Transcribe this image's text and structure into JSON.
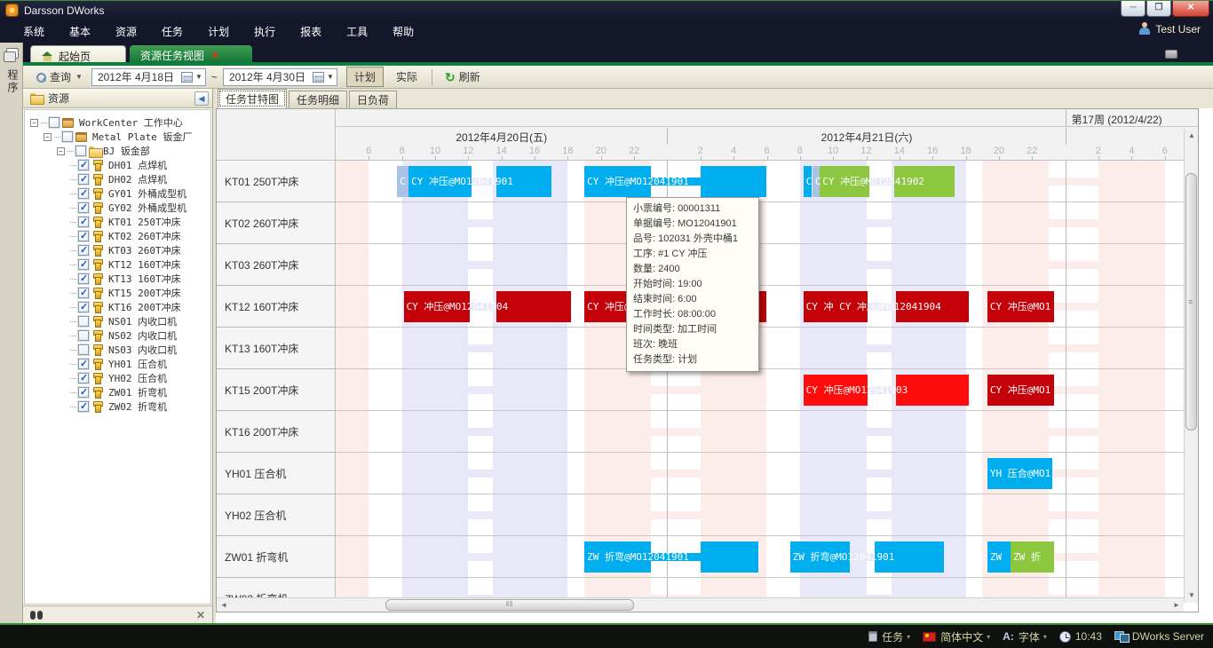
{
  "window": {
    "title": "Darsson DWorks",
    "user": "Test User"
  },
  "menu": {
    "items": [
      "系统",
      "基本",
      "资源",
      "任务",
      "计划",
      "执行",
      "报表",
      "工具",
      "帮助"
    ]
  },
  "side_strip": {
    "label": "程序"
  },
  "doc_tabs": {
    "home": "起始页",
    "active": "资源任务视图",
    "close_glyph": "✕"
  },
  "toolbar": {
    "search_label": "查询",
    "date_from": "2012年  4月18日",
    "range_sep": "~",
    "date_to": "2012年  4月30日",
    "plan_label": "计划",
    "actual_label": "实际",
    "refresh_label": "刷新"
  },
  "resource_panel": {
    "title": "资源",
    "tree": [
      {
        "level": 0,
        "label": "WorkCenter 工作中心",
        "parent": true,
        "checked": false,
        "icon": "workcenter-icon"
      },
      {
        "level": 1,
        "label": "Metal Plate 钣金厂",
        "parent": true,
        "checked": false,
        "icon": "factory-icon"
      },
      {
        "level": 2,
        "label": "BJ 钣金部",
        "parent": true,
        "checked": false,
        "icon": "folder-icon"
      },
      {
        "level": 3,
        "label": "DH01 点焊机",
        "checked": true,
        "icon": "machine-icon"
      },
      {
        "level": 3,
        "label": "DH02 点焊机",
        "checked": true,
        "icon": "machine-icon"
      },
      {
        "level": 3,
        "label": "GY01 外桶成型机",
        "checked": true,
        "icon": "machine-icon"
      },
      {
        "level": 3,
        "label": "GY02 外桶成型机",
        "checked": true,
        "icon": "machine-icon"
      },
      {
        "level": 3,
        "label": "KT01 250T冲床",
        "checked": true,
        "icon": "machine-icon"
      },
      {
        "level": 3,
        "label": "KT02 260T冲床",
        "checked": true,
        "icon": "machine-icon"
      },
      {
        "level": 3,
        "label": "KT03 260T冲床",
        "checked": true,
        "icon": "machine-icon"
      },
      {
        "level": 3,
        "label": "KT12 160T冲床",
        "checked": true,
        "icon": "machine-icon"
      },
      {
        "level": 3,
        "label": "KT13 160T冲床",
        "checked": true,
        "icon": "machine-icon"
      },
      {
        "level": 3,
        "label": "KT15 200T冲床",
        "checked": true,
        "icon": "machine-icon"
      },
      {
        "level": 3,
        "label": "KT16 200T冲床",
        "checked": true,
        "icon": "machine-icon"
      },
      {
        "level": 3,
        "label": "NS01 内收口机",
        "checked": false,
        "icon": "machine-icon"
      },
      {
        "level": 3,
        "label": "NS02 内收口机",
        "checked": false,
        "icon": "machine-icon"
      },
      {
        "level": 3,
        "label": "NS03 内收口机",
        "checked": false,
        "icon": "machine-icon"
      },
      {
        "level": 3,
        "label": "YH01 压合机",
        "checked": true,
        "icon": "machine-icon"
      },
      {
        "level": 3,
        "label": "YH02 压合机",
        "checked": true,
        "icon": "machine-icon"
      },
      {
        "level": 3,
        "label": "ZW01 折弯机",
        "checked": true,
        "icon": "machine-icon"
      },
      {
        "level": 3,
        "label": "ZW02 折弯机",
        "checked": true,
        "icon": "machine-icon"
      }
    ]
  },
  "gantt": {
    "tabs": [
      {
        "label": "任务甘特图",
        "active": true
      },
      {
        "label": "任务明细",
        "active": false
      },
      {
        "label": "日负荷",
        "active": false
      }
    ],
    "timeline": {
      "start": 4,
      "end": 56
    },
    "week_cells": [
      {
        "label": "",
        "start": 4,
        "end": 48
      },
      {
        "label": "第17周 (2012/4/22)",
        "start": 48,
        "end": 56
      }
    ],
    "days": [
      {
        "label": "2012年4月20日(五)",
        "start": 4,
        "end": 24,
        "ticks": [
          6,
          8,
          10,
          12,
          14,
          16,
          18,
          20,
          22
        ]
      },
      {
        "label": "2012年4月21日(六)",
        "start": 24,
        "end": 48,
        "ticks": [
          26,
          28,
          30,
          32,
          34,
          36,
          38,
          40,
          42,
          44,
          46
        ]
      },
      {
        "label": "",
        "start": 48,
        "end": 56,
        "ticks": [
          50,
          52,
          54
        ]
      }
    ],
    "tick_hour_labels": {
      "26": "2",
      "28": "4",
      "30": "6",
      "32": "8",
      "34": "10",
      "36": "12",
      "38": "14",
      "40": "16",
      "42": "18",
      "44": "20",
      "46": "22",
      "50": "2",
      "52": "4",
      "54": "6"
    },
    "shift_bands": [
      {
        "kind": "block",
        "tone": "pink",
        "start": 4,
        "end": 6
      },
      {
        "kind": "block",
        "tone": "lav",
        "start": 8,
        "end": 12
      },
      {
        "kind": "thin",
        "tone": "lav",
        "start": 12,
        "end": 13.5
      },
      {
        "kind": "block",
        "tone": "lav",
        "start": 13.5,
        "end": 18
      },
      {
        "kind": "block",
        "tone": "pink",
        "start": 19,
        "end": 23
      },
      {
        "kind": "thin",
        "tone": "pink",
        "start": 23,
        "end": 26
      },
      {
        "kind": "block",
        "tone": "pink",
        "start": 26,
        "end": 30
      },
      {
        "kind": "block",
        "tone": "lav",
        "start": 32,
        "end": 36
      },
      {
        "kind": "thin",
        "tone": "lav",
        "start": 36,
        "end": 37.5
      },
      {
        "kind": "block",
        "tone": "lav",
        "start": 37.5,
        "end": 42
      },
      {
        "kind": "block",
        "tone": "pink",
        "start": 43,
        "end": 47
      },
      {
        "kind": "thin",
        "tone": "pink",
        "start": 47,
        "end": 50
      },
      {
        "kind": "block",
        "tone": "pink",
        "start": 50,
        "end": 54
      }
    ],
    "rows": [
      {
        "label": "KT01 250T冲床",
        "bars": [
          {
            "color": "slate",
            "segs": [
              [
                7.7,
                8.4
              ]
            ],
            "label": "C"
          },
          {
            "color": "cyan",
            "segs": [
              [
                8.4,
                12.2
              ],
              [
                13.7,
                17.0
              ]
            ],
            "label": "CY 冲压@MO12041901"
          },
          {
            "color": "cyan",
            "segs": [
              [
                19,
                23
              ],
              [
                26,
                30
              ]
            ],
            "thin": [
              [
                23,
                26
              ]
            ],
            "label": "CY 冲压@MO12041901"
          },
          {
            "color": "cyan",
            "segs": [
              [
                32.2,
                32.7
              ]
            ],
            "label": "C"
          },
          {
            "color": "slate",
            "segs": [
              [
                32.75,
                33.2
              ]
            ],
            "label": "C"
          },
          {
            "color": "green",
            "segs": [
              [
                33.2,
                36.2
              ],
              [
                37.7,
                41.3
              ]
            ],
            "label": "CY 冲压@MO12041902"
          }
        ]
      },
      {
        "label": "KT02 260T冲床",
        "bars": []
      },
      {
        "label": "KT03 260T冲床",
        "bars": []
      },
      {
        "label": "KT12 160T冲床",
        "bars": [
          {
            "color": "darkred",
            "segs": [
              [
                8.1,
                12.1
              ],
              [
                13.7,
                18.2
              ]
            ],
            "label": "CY 冲压@MO12041904"
          },
          {
            "color": "darkred",
            "segs": [
              [
                19,
                23
              ],
              [
                26,
                30
              ]
            ],
            "thin": [
              [
                23,
                26
              ]
            ],
            "label": "CY 冲压@MO12041904"
          },
          {
            "color": "darkred",
            "segs": [
              [
                32.2,
                36.1
              ],
              [
                37.8,
                42.2
              ]
            ],
            "label": "CY 冲 CY 冲压@MO12041904"
          },
          {
            "color": "darkred",
            "segs": [
              [
                43.3,
                47.3
              ]
            ],
            "label": "CY 冲压@MO1"
          }
        ]
      },
      {
        "label": "KT13 160T冲床",
        "bars": []
      },
      {
        "label": "KT15 200T冲床",
        "bars": [
          {
            "color": "red",
            "segs": [
              [
                32.2,
                36.1
              ],
              [
                37.8,
                42.2
              ]
            ],
            "label": "CY 冲压@MO12041903"
          },
          {
            "color": "darkred",
            "segs": [
              [
                43.3,
                47.3
              ]
            ],
            "label": "CY 冲压@MO1"
          }
        ]
      },
      {
        "label": "KT16 200T冲床",
        "bars": []
      },
      {
        "label": "YH01 压合机",
        "bars": [
          {
            "color": "cyan",
            "segs": [
              [
                43.3,
                47.2
              ]
            ],
            "label": "YH 压合@MO1"
          }
        ]
      },
      {
        "label": "YH02 压合机",
        "bars": []
      },
      {
        "label": "ZW01 折弯机",
        "bars": [
          {
            "color": "cyan",
            "segs": [
              [
                19,
                23
              ],
              [
                26,
                29.5
              ]
            ],
            "thin": [
              [
                23,
                26
              ]
            ],
            "label": "ZW 折弯@MO12041901"
          },
          {
            "color": "cyan",
            "segs": [
              [
                31.4,
                35.0
              ],
              [
                36.5,
                40.7
              ]
            ],
            "label": "ZW 折弯@MO12041901"
          },
          {
            "color": "cyan",
            "segs": [
              [
                43.3,
                44.7
              ]
            ],
            "label": "ZW"
          },
          {
            "color": "green",
            "segs": [
              [
                44.7,
                47.3
              ]
            ],
            "label": "ZW 折"
          }
        ]
      },
      {
        "label": "ZW02 折弯机",
        "bars": []
      }
    ],
    "bar_colors": {
      "cyan": "#00aeef",
      "green": "#8dc63f",
      "red": "#ff0d0d",
      "darkred": "#c40008",
      "slate": "#a9c2e6"
    }
  },
  "tooltip": {
    "lines": [
      "小票编号: 00001311",
      "单据编号: MO12041901",
      "品号: 102031 外壳中桶1",
      "工序: #1  CY 冲压",
      "数量: 2400",
      "开始时间: 19:00",
      "结束时间: 6:00",
      "工作时长: 08:00:00",
      "时间类型: 加工时间",
      "班次: 晚班",
      "任务类型: 计划"
    ]
  },
  "status_bar": {
    "items": [
      {
        "icon": "clipboard-icon",
        "label": "任务",
        "arrow": true
      },
      {
        "icon": "flag-cn-icon",
        "label": "简体中文",
        "arrow": true
      },
      {
        "icon": "font-icon",
        "label": "字体",
        "arrow": true
      },
      {
        "icon": "clock-icon",
        "label": "10:43",
        "arrow": false
      },
      {
        "icon": "server-icon",
        "label": "DWorks Server",
        "arrow": false
      }
    ]
  }
}
